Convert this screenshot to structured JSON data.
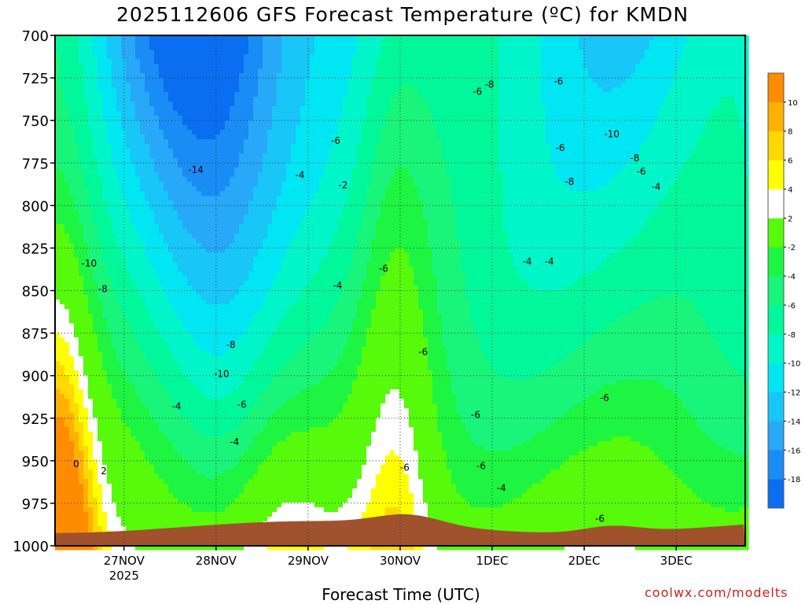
{
  "chart_data": {
    "type": "heatmap",
    "title": "2025112606 GFS Forecast Temperature (ºC) for KMDN",
    "xlabel": "Forecast Time (UTC)",
    "credit": "coolwx.com/modelts",
    "y_axis": {
      "ticks": [
        700,
        725,
        750,
        775,
        800,
        825,
        850,
        875,
        900,
        925,
        950,
        975,
        1000
      ],
      "range": [
        700,
        1000
      ],
      "inverted": true,
      "grid": true
    },
    "x_axis": {
      "ticks": [
        {
          "day": 27,
          "label": "27NOV",
          "sublabel": "2025"
        },
        {
          "day": 28,
          "label": "28NOV"
        },
        {
          "day": 29,
          "label": "29NOV"
        },
        {
          "day": 30,
          "label": "30NOV"
        },
        {
          "day": 31,
          "label": "1DEC"
        },
        {
          "day": 32,
          "label": "2DEC"
        },
        {
          "day": 33,
          "label": "3DEC"
        }
      ],
      "range_days": [
        26.25,
        33.75
      ],
      "grid": true
    },
    "colorbar": {
      "levels": [
        -20,
        -18,
        -16,
        -14,
        -12,
        -10,
        -8,
        -6,
        -4,
        -2,
        2,
        4,
        6,
        8,
        10,
        12
      ],
      "labels": [
        -18,
        -16,
        -14,
        -12,
        -10,
        -8,
        -6,
        -4,
        -2,
        2,
        4,
        6,
        8,
        10
      ],
      "colors": [
        "#0a6ef0",
        "#1a8cf5",
        "#28a8f8",
        "#18c6f8",
        "#00e6f2",
        "#00f6c8",
        "#00f79a",
        "#19f57a",
        "#1ef542",
        "#56fa0a",
        "#ffffff",
        "#ffff00",
        "#ffd800",
        "#ffb000",
        "#ff8c00"
      ]
    },
    "contour_labels": [
      {
        "day": 26.62,
        "p": 834,
        "text": "-10"
      },
      {
        "day": 26.48,
        "p": 952,
        "text": "0"
      },
      {
        "day": 26.78,
        "p": 956,
        "text": "2"
      },
      {
        "day": 26.77,
        "p": 849,
        "text": "-8"
      },
      {
        "day": 27.78,
        "p": 779,
        "text": "-14"
      },
      {
        "day": 27.57,
        "p": 918,
        "text": "-4"
      },
      {
        "day": 28.06,
        "p": 899,
        "text": "-10"
      },
      {
        "day": 28.16,
        "p": 882,
        "text": "-8"
      },
      {
        "day": 28.2,
        "p": 939,
        "text": "-4"
      },
      {
        "day": 28.28,
        "p": 917,
        "text": "-6"
      },
      {
        "day": 28.91,
        "p": 782,
        "text": "-4"
      },
      {
        "day": 29.3,
        "p": 762,
        "text": "-6"
      },
      {
        "day": 29.38,
        "p": 788,
        "text": "-2"
      },
      {
        "day": 29.32,
        "p": 847,
        "text": "-4"
      },
      {
        "day": 29.82,
        "p": 837,
        "text": "-6"
      },
      {
        "day": 30.25,
        "p": 886,
        "text": "-6"
      },
      {
        "day": 30.84,
        "p": 733,
        "text": "-6"
      },
      {
        "day": 30.97,
        "p": 729,
        "text": "-8"
      },
      {
        "day": 31.72,
        "p": 727,
        "text": "-6"
      },
      {
        "day": 31.74,
        "p": 766,
        "text": "-6"
      },
      {
        "day": 31.84,
        "p": 786,
        "text": "-8"
      },
      {
        "day": 32.3,
        "p": 758,
        "text": "-10"
      },
      {
        "day": 32.55,
        "p": 772,
        "text": "-8"
      },
      {
        "day": 32.62,
        "p": 780,
        "text": "-6"
      },
      {
        "day": 32.78,
        "p": 789,
        "text": "-4"
      },
      {
        "day": 31.38,
        "p": 833,
        "text": "-4"
      },
      {
        "day": 31.62,
        "p": 833,
        "text": "-4"
      },
      {
        "day": 30.82,
        "p": 923,
        "text": "-6"
      },
      {
        "day": 30.88,
        "p": 953,
        "text": "-6"
      },
      {
        "day": 30.05,
        "p": 954,
        "text": "-6"
      },
      {
        "day": 31.1,
        "p": 966,
        "text": "-4"
      },
      {
        "day": 32.22,
        "p": 913,
        "text": "-6"
      },
      {
        "day": 32.17,
        "p": 984,
        "text": "-6"
      }
    ]
  }
}
